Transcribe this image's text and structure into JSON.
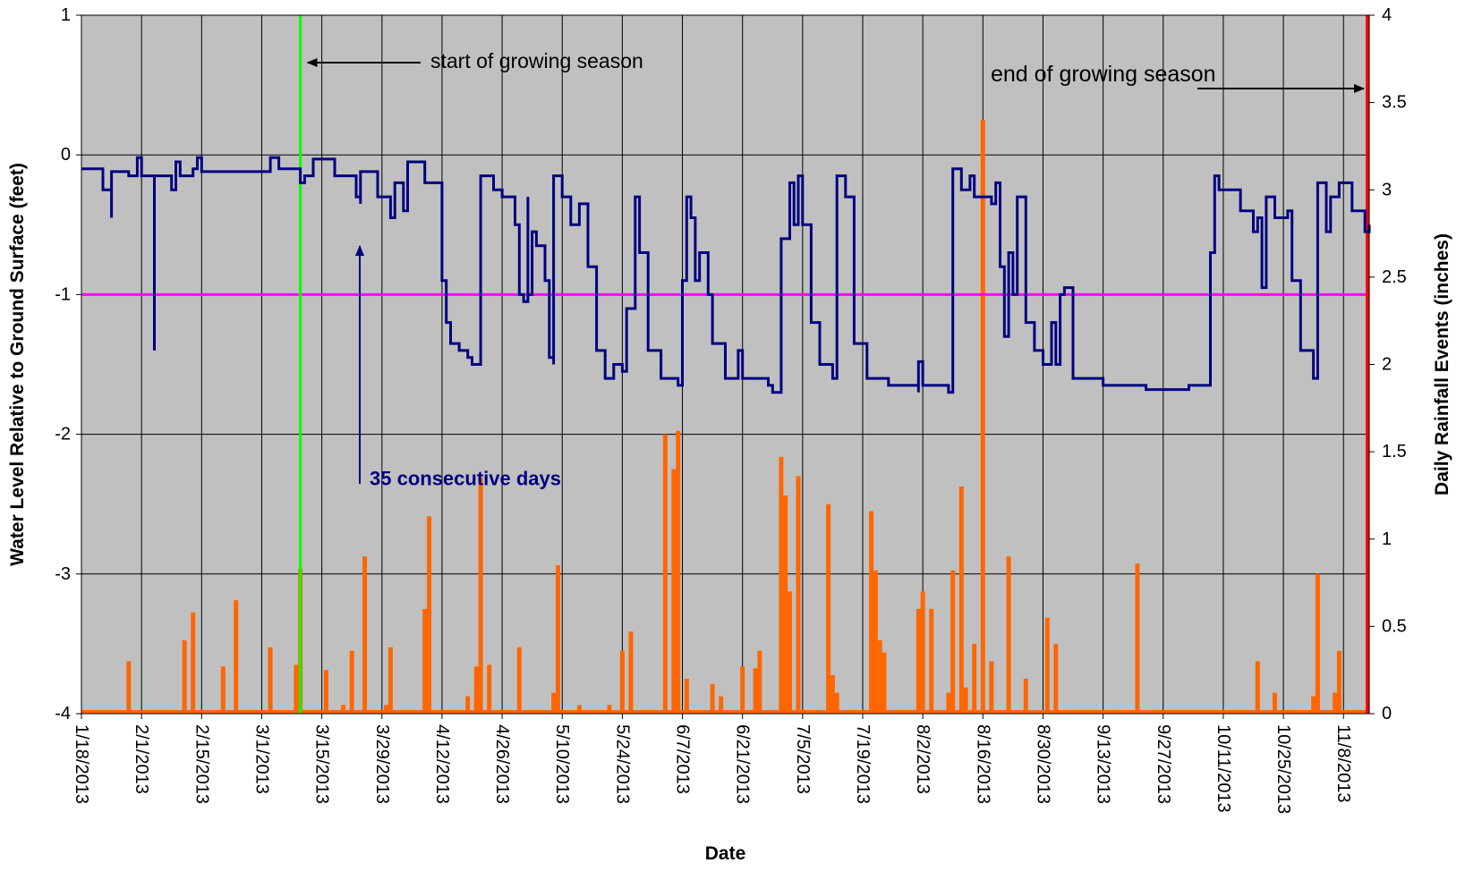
{
  "chart_data": {
    "type": "line",
    "title": "",
    "xlabel": "Date",
    "ylabel_left": "Water Level Relative to Ground Surface (feet)",
    "ylabel_right": "Daily Rainfall Events (inches)",
    "x_range": [
      "2013-01-18",
      "2013-11-14"
    ],
    "ylim_left": [
      -4,
      1
    ],
    "ylim_right": [
      0,
      4
    ],
    "yticks_left": [
      "1",
      "0",
      "-1",
      "-2",
      "-3",
      "-4"
    ],
    "yticks_right": [
      "4",
      "3.5",
      "3",
      "2.5",
      "2",
      "1.5",
      "1",
      "0.5",
      "0"
    ],
    "xticks": [
      "1/18/2013",
      "2/1/2013",
      "2/15/2013",
      "3/1/2013",
      "3/15/2013",
      "3/29/2013",
      "4/12/2013",
      "4/26/2013",
      "5/10/2013",
      "5/24/2013",
      "6/7/2013",
      "6/21/2013",
      "7/5/2013",
      "7/19/2013",
      "8/2/2013",
      "8/16/2013",
      "8/30/2013",
      "9/13/2013",
      "9/27/2013",
      "10/11/2013",
      "10/25/2013",
      "11/8/2013"
    ],
    "grid": true,
    "plot_background": "#c0c0c0",
    "colors": {
      "water_level": "#000080",
      "rainfall": "#ff6600",
      "threshold": "#ff00ff",
      "season_start": "#00ff00",
      "season_end": "#ff0000"
    },
    "threshold_level": -1,
    "season_start_date": "2013-03-10",
    "season_end_date": "2013-11-14",
    "annotations": {
      "start": "start of growing season",
      "end": "end of growing  season",
      "consecutive": "35 consecutive days"
    },
    "water_level": [
      [
        "2013-01-18",
        -0.1
      ],
      [
        "2013-01-23",
        -0.25
      ],
      [
        "2013-01-25",
        -0.45
      ],
      [
        "2013-01-25",
        -0.12
      ],
      [
        "2013-01-29",
        -0.15
      ],
      [
        "2013-01-31",
        -0.15
      ],
      [
        "2013-01-31",
        -0.02
      ],
      [
        "2013-02-01",
        -0.15
      ],
      [
        "2013-02-04",
        -0.18
      ],
      [
        "2013-02-04",
        -1.4
      ],
      [
        "2013-02-04",
        -0.15
      ],
      [
        "2013-02-08",
        -0.25
      ],
      [
        "2013-02-09",
        -0.05
      ],
      [
        "2013-02-10",
        -0.15
      ],
      [
        "2013-02-13",
        -0.1
      ],
      [
        "2013-02-14",
        -0.02
      ],
      [
        "2013-02-15",
        -0.12
      ],
      [
        "2013-02-20",
        -0.12
      ],
      [
        "2013-02-27",
        -0.12
      ],
      [
        "2013-03-03",
        -0.02
      ],
      [
        "2013-03-05",
        -0.1
      ],
      [
        "2013-03-10",
        -0.2
      ],
      [
        "2013-03-11",
        -0.15
      ],
      [
        "2013-03-13",
        -0.03
      ],
      [
        "2013-03-18",
        -0.15
      ],
      [
        "2013-03-23",
        -0.3
      ],
      [
        "2013-03-24",
        -0.35
      ],
      [
        "2013-03-24",
        -0.12
      ],
      [
        "2013-03-28",
        -0.3
      ],
      [
        "2013-03-31",
        -0.45
      ],
      [
        "2013-04-01",
        -0.2
      ],
      [
        "2013-04-02",
        -0.2
      ],
      [
        "2013-04-03",
        -0.4
      ],
      [
        "2013-04-04",
        -0.05
      ],
      [
        "2013-04-08",
        -0.2
      ],
      [
        "2013-04-12",
        -0.5
      ],
      [
        "2013-04-12",
        -0.9
      ],
      [
        "2013-04-13",
        -1.2
      ],
      [
        "2013-04-14",
        -1.35
      ],
      [
        "2013-04-16",
        -1.4
      ],
      [
        "2013-04-18",
        -1.45
      ],
      [
        "2013-04-19",
        -1.5
      ],
      [
        "2013-04-21",
        -0.15
      ],
      [
        "2013-04-24",
        -0.25
      ],
      [
        "2013-04-26",
        -0.3
      ],
      [
        "2013-04-29",
        -0.5
      ],
      [
        "2013-04-30",
        -1.0
      ],
      [
        "2013-05-01",
        -1.05
      ],
      [
        "2013-05-02",
        -0.3
      ],
      [
        "2013-05-02",
        -1.0
      ],
      [
        "2013-05-03",
        -0.55
      ],
      [
        "2013-05-04",
        -0.65
      ],
      [
        "2013-05-06",
        -0.9
      ],
      [
        "2013-05-07",
        -1.45
      ],
      [
        "2013-05-08",
        -1.5
      ],
      [
        "2013-05-08",
        -0.15
      ],
      [
        "2013-05-10",
        -0.3
      ],
      [
        "2013-05-12",
        -0.5
      ],
      [
        "2013-05-14",
        -0.35
      ],
      [
        "2013-05-16",
        -0.8
      ],
      [
        "2013-05-18",
        -1.4
      ],
      [
        "2013-05-20",
        -1.6
      ],
      [
        "2013-05-22",
        -1.5
      ],
      [
        "2013-05-24",
        -1.55
      ],
      [
        "2013-05-25",
        -1.2
      ],
      [
        "2013-05-25",
        -1.1
      ],
      [
        "2013-05-27",
        -0.3
      ],
      [
        "2013-05-28",
        -0.7
      ],
      [
        "2013-05-30",
        -1.4
      ],
      [
        "2013-06-02",
        -1.6
      ],
      [
        "2013-06-06",
        -1.65
      ],
      [
        "2013-06-07",
        -0.9
      ],
      [
        "2013-06-08",
        -0.3
      ],
      [
        "2013-06-09",
        -0.45
      ],
      [
        "2013-06-10",
        -0.9
      ],
      [
        "2013-06-11",
        -0.7
      ],
      [
        "2013-06-13",
        -1.0
      ],
      [
        "2013-06-14",
        -1.35
      ],
      [
        "2013-06-17",
        -1.6
      ],
      [
        "2013-06-20",
        -1.4
      ],
      [
        "2013-06-21",
        -1.6
      ],
      [
        "2013-06-27",
        -1.65
      ],
      [
        "2013-06-28",
        -1.7
      ],
      [
        "2013-06-30",
        -0.6
      ],
      [
        "2013-07-02",
        -0.2
      ],
      [
        "2013-07-03",
        -0.5
      ],
      [
        "2013-07-04",
        -0.15
      ],
      [
        "2013-07-05",
        -0.5
      ],
      [
        "2013-07-07",
        -1.2
      ],
      [
        "2013-07-09",
        -1.5
      ],
      [
        "2013-07-12",
        -1.6
      ],
      [
        "2013-07-13",
        -0.15
      ],
      [
        "2013-07-15",
        -0.3
      ],
      [
        "2013-07-17",
        -1.35
      ],
      [
        "2013-07-20",
        -1.6
      ],
      [
        "2013-07-25",
        -1.65
      ],
      [
        "2013-08-01",
        -1.7
      ],
      [
        "2013-08-01",
        -1.48
      ],
      [
        "2013-08-02",
        -1.65
      ],
      [
        "2013-08-08",
        -1.7
      ],
      [
        "2013-08-09",
        -0.1
      ],
      [
        "2013-08-11",
        -0.25
      ],
      [
        "2013-08-13",
        -0.15
      ],
      [
        "2013-08-14",
        -0.3
      ],
      [
        "2013-08-18",
        -0.35
      ],
      [
        "2013-08-19",
        -0.2
      ],
      [
        "2013-08-20",
        -0.8
      ],
      [
        "2013-08-21",
        -1.3
      ],
      [
        "2013-08-22",
        -0.7
      ],
      [
        "2013-08-23",
        -1.0
      ],
      [
        "2013-08-24",
        -0.3
      ],
      [
        "2013-08-26",
        -1.2
      ],
      [
        "2013-08-28",
        -1.4
      ],
      [
        "2013-08-30",
        -1.5
      ],
      [
        "2013-09-01",
        -1.2
      ],
      [
        "2013-09-02",
        -1.5
      ],
      [
        "2013-09-03",
        -1.0
      ],
      [
        "2013-09-04",
        -0.95
      ],
      [
        "2013-09-06",
        -1.6
      ],
      [
        "2013-09-13",
        -1.65
      ],
      [
        "2013-09-23",
        -1.68
      ],
      [
        "2013-10-03",
        -1.65
      ],
      [
        "2013-10-07",
        -1.65
      ],
      [
        "2013-10-08",
        -0.7
      ],
      [
        "2013-10-09",
        -0.15
      ],
      [
        "2013-10-10",
        -0.25
      ],
      [
        "2013-10-15",
        -0.4
      ],
      [
        "2013-10-18",
        -0.55
      ],
      [
        "2013-10-19",
        -0.45
      ],
      [
        "2013-10-20",
        -0.95
      ],
      [
        "2013-10-21",
        -0.3
      ],
      [
        "2013-10-23",
        -0.45
      ],
      [
        "2013-10-26",
        -0.4
      ],
      [
        "2013-10-27",
        -0.9
      ],
      [
        "2013-10-29",
        -1.4
      ],
      [
        "2013-11-01",
        -1.6
      ],
      [
        "2013-11-02",
        -1.55
      ],
      [
        "2013-11-02",
        -0.2
      ],
      [
        "2013-11-04",
        -0.55
      ],
      [
        "2013-11-05",
        -0.3
      ],
      [
        "2013-11-07",
        -0.2
      ],
      [
        "2013-11-10",
        -0.4
      ],
      [
        "2013-11-13",
        -0.55
      ],
      [
        "2013-11-14",
        -0.5
      ]
    ],
    "rainfall": [
      [
        "2013-01-29",
        0.3
      ],
      [
        "2013-02-11",
        0.42
      ],
      [
        "2013-02-13",
        0.58
      ],
      [
        "2013-02-20",
        0.27
      ],
      [
        "2013-02-23",
        0.65
      ],
      [
        "2013-03-03",
        0.38
      ],
      [
        "2013-03-09",
        0.28
      ],
      [
        "2013-03-10",
        0.83
      ],
      [
        "2013-03-16",
        0.25
      ],
      [
        "2013-03-20",
        0.05
      ],
      [
        "3/22/2013",
        0.36
      ],
      [
        "2013-03-25",
        0.9
      ],
      [
        "2013-03-30",
        0.05
      ],
      [
        "2013-03-31",
        0.38
      ],
      [
        "2013-04-08",
        0.6
      ],
      [
        "2013-04-09",
        1.13
      ],
      [
        "2013-04-18",
        0.1
      ],
      [
        "2013-04-20",
        0.27
      ],
      [
        "2013-04-21",
        1.35
      ],
      [
        "2013-04-23",
        0.28
      ],
      [
        "2013-04-30",
        0.38
      ],
      [
        "2013-05-08",
        0.12
      ],
      [
        "2013-05-09",
        0.85
      ],
      [
        "2013-05-14",
        0.05
      ],
      [
        "2013-05-21",
        0.05
      ],
      [
        "2013-05-24",
        0.36
      ],
      [
        "2013-05-26",
        0.47
      ],
      [
        "2013-06-03",
        1.6
      ],
      [
        "2013-06-05",
        1.4
      ],
      [
        "2013-06-06",
        1.62
      ],
      [
        "2013-06-08",
        0.2
      ],
      [
        "2013-06-14",
        0.17
      ],
      [
        "2013-06-16",
        0.1
      ],
      [
        "2013-06-21",
        0.27
      ],
      [
        "2013-06-24",
        0.26
      ],
      [
        "2013-06-25",
        0.36
      ],
      [
        "2013-06-30",
        1.47
      ],
      [
        "2013-07-01",
        1.25
      ],
      [
        "2013-07-02",
        0.7
      ],
      [
        "2013-07-04",
        1.36
      ],
      [
        "2013-07-11",
        1.2
      ],
      [
        "2013-07-12",
        0.22
      ],
      [
        "2013-07-13",
        0.12
      ],
      [
        "2013-07-21",
        1.16
      ],
      [
        "2013-07-22",
        0.82
      ],
      [
        "2013-07-23",
        0.42
      ],
      [
        "2013-07-24",
        0.35
      ],
      [
        "2013-08-01",
        0.6
      ],
      [
        "2013-08-02",
        0.7
      ],
      [
        "2013-08-04",
        0.6
      ],
      [
        "2013-08-08",
        0.12
      ],
      [
        "2013-08-09",
        0.82
      ],
      [
        "2013-08-11",
        1.3
      ],
      [
        "2013-08-12",
        0.15
      ],
      [
        "2013-08-14",
        0.4
      ],
      [
        "2013-08-16",
        3.4
      ],
      [
        "2013-08-18",
        0.3
      ],
      [
        "2013-08-22",
        0.9
      ],
      [
        "2013-08-26",
        0.2
      ],
      [
        "2013-08-31",
        0.55
      ],
      [
        "2013-09-02",
        0.4
      ],
      [
        "2013-09-21",
        0.86
      ],
      [
        "2013-10-19",
        0.3
      ],
      [
        "2013-10-23",
        0.12
      ],
      [
        "2013-11-01",
        0.1
      ],
      [
        "2013-11-02",
        0.8
      ],
      [
        "2013-11-06",
        0.12
      ],
      [
        "2013-11-07",
        0.36
      ]
    ]
  }
}
